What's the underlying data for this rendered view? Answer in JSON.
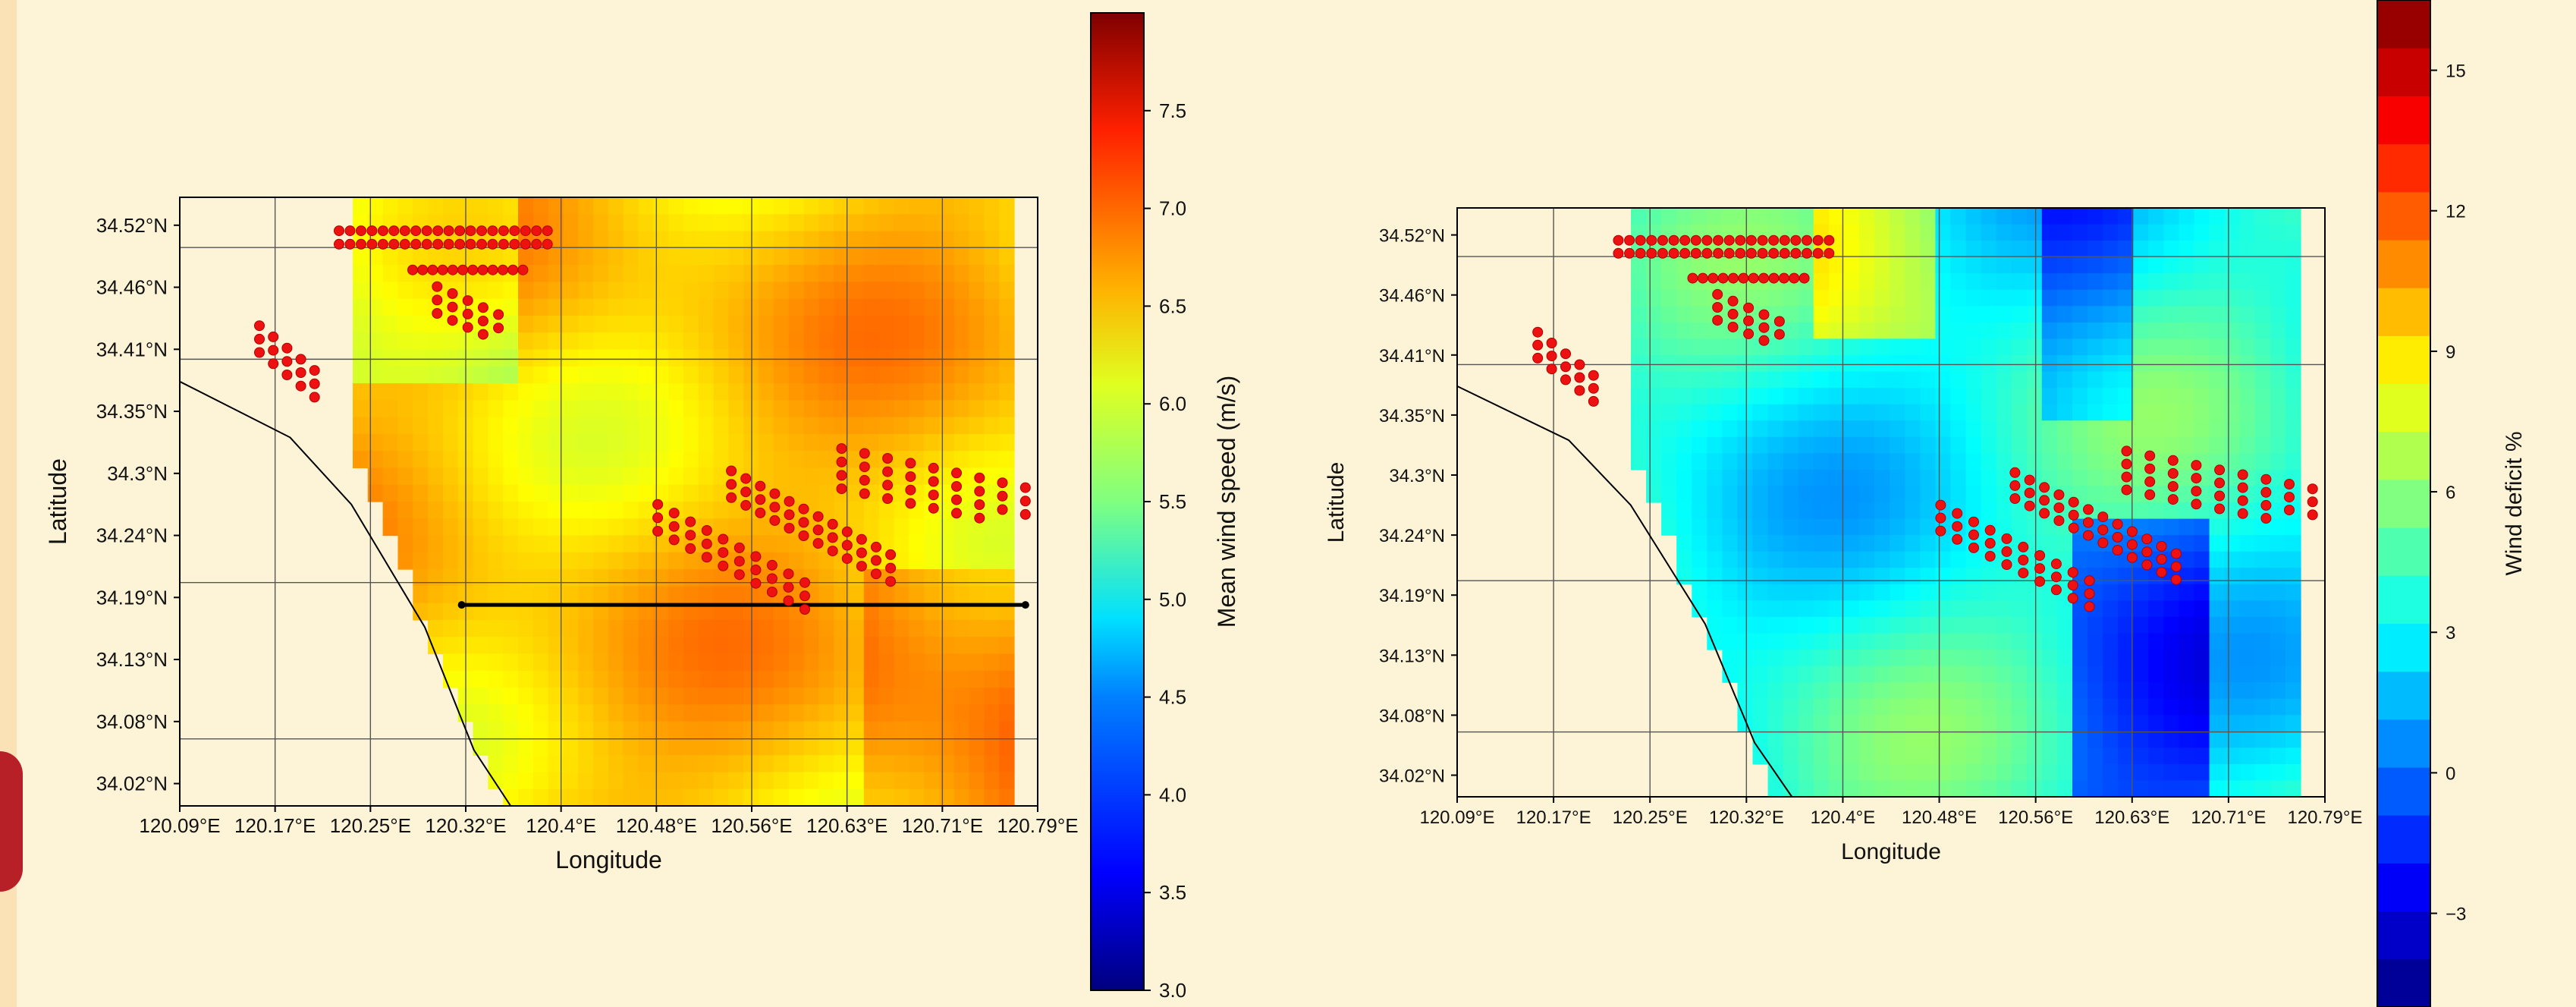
{
  "chart_data": [
    {
      "type": "heatmap",
      "title": "",
      "xlabel": "Longitude",
      "ylabel": "Latitude",
      "xlim": [
        120.09,
        120.79
      ],
      "ylim": [
        34.0,
        34.545
      ],
      "x_ticks": [
        "120.09°E",
        "120.17°E",
        "120.25°E",
        "120.32°E",
        "120.4°E",
        "120.48°E",
        "120.56°E",
        "120.63°E",
        "120.71°E",
        "120.79°E"
      ],
      "y_ticks": [
        "34.52°N",
        "34.46°N",
        "34.41°N",
        "34.35°N",
        "34.3°N",
        "34.24°N",
        "34.19°N",
        "34.13°N",
        "34.08°N",
        "34.02°N"
      ],
      "grid": true,
      "colorbar": {
        "label": "Mean wind speed (m/s)",
        "range": [
          3.0,
          8.0
        ],
        "ticks": [
          "3.0",
          "3.5",
          "4.0",
          "4.5",
          "5.0",
          "5.5",
          "6.0",
          "6.5",
          "7.0",
          "7.5"
        ],
        "colormap": "jet"
      },
      "field_mean": 6.4,
      "transect": {
        "lat": 34.18,
        "lon": [
          120.32,
          120.78
        ]
      },
      "turbines": [
        {
          "lon": [
            120.22,
            120.39
          ],
          "lat": [
            34.515,
            34.515
          ],
          "rows": 2,
          "count": 40
        },
        {
          "lon": [
            120.28,
            120.37
          ],
          "lat": [
            34.48,
            34.48
          ],
          "rows": 1,
          "count": 12
        },
        {
          "lon": [
            120.3,
            120.35
          ],
          "lat": [
            34.465,
            34.44
          ],
          "rows": 3,
          "count": 14
        },
        {
          "lon": [
            120.155,
            120.2
          ],
          "lat": [
            34.43,
            34.39
          ],
          "rows": 3,
          "count": 15
        },
        {
          "lon": [
            120.48,
            120.6
          ],
          "lat": [
            34.27,
            34.2
          ],
          "rows": 3,
          "count": 30
        },
        {
          "lon": [
            120.54,
            120.67
          ],
          "lat": [
            34.3,
            34.225
          ],
          "rows": 3,
          "count": 36
        },
        {
          "lon": [
            120.63,
            120.78
          ],
          "lat": [
            34.32,
            34.285
          ],
          "rows": 4,
          "count": 34
        }
      ]
    },
    {
      "type": "heatmap",
      "title": "",
      "xlabel": "Longitude",
      "ylabel": "Latitude",
      "xlim": [
        120.09,
        120.79
      ],
      "ylim": [
        34.0,
        34.545
      ],
      "x_ticks": [
        "120.09°E",
        "120.17°E",
        "120.25°E",
        "120.32°E",
        "120.4°E",
        "120.48°E",
        "120.56°E",
        "120.63°E",
        "120.71°E",
        "120.79°E"
      ],
      "y_ticks": [
        "34.52°N",
        "34.46°N",
        "34.41°N",
        "34.35°N",
        "34.3°N",
        "34.24°N",
        "34.19°N",
        "34.13°N",
        "34.08°N",
        "34.02°N"
      ],
      "grid": true,
      "colorbar": {
        "label": "Wind deficit %",
        "range": [
          -5,
          16.5
        ],
        "ticks": [
          "−3",
          "0",
          "3",
          "6",
          "9",
          "12",
          "15"
        ],
        "colormap": "jet-discrete"
      },
      "field_mean": 3.5,
      "turbines": [
        {
          "lon": [
            120.22,
            120.39
          ],
          "lat": [
            34.515,
            34.515
          ],
          "rows": 2,
          "count": 40
        },
        {
          "lon": [
            120.28,
            120.37
          ],
          "lat": [
            34.48,
            34.48
          ],
          "rows": 1,
          "count": 12
        },
        {
          "lon": [
            120.3,
            120.35
          ],
          "lat": [
            34.465,
            34.44
          ],
          "rows": 3,
          "count": 14
        },
        {
          "lon": [
            120.155,
            120.2
          ],
          "lat": [
            34.43,
            34.39
          ],
          "rows": 3,
          "count": 15
        },
        {
          "lon": [
            120.48,
            120.6
          ],
          "lat": [
            34.27,
            34.2
          ],
          "rows": 3,
          "count": 30
        },
        {
          "lon": [
            120.54,
            120.67
          ],
          "lat": [
            34.3,
            34.225
          ],
          "rows": 3,
          "count": 36
        },
        {
          "lon": [
            120.63,
            120.78
          ],
          "lat": [
            34.32,
            34.285
          ],
          "rows": 4,
          "count": 34
        }
      ]
    }
  ]
}
